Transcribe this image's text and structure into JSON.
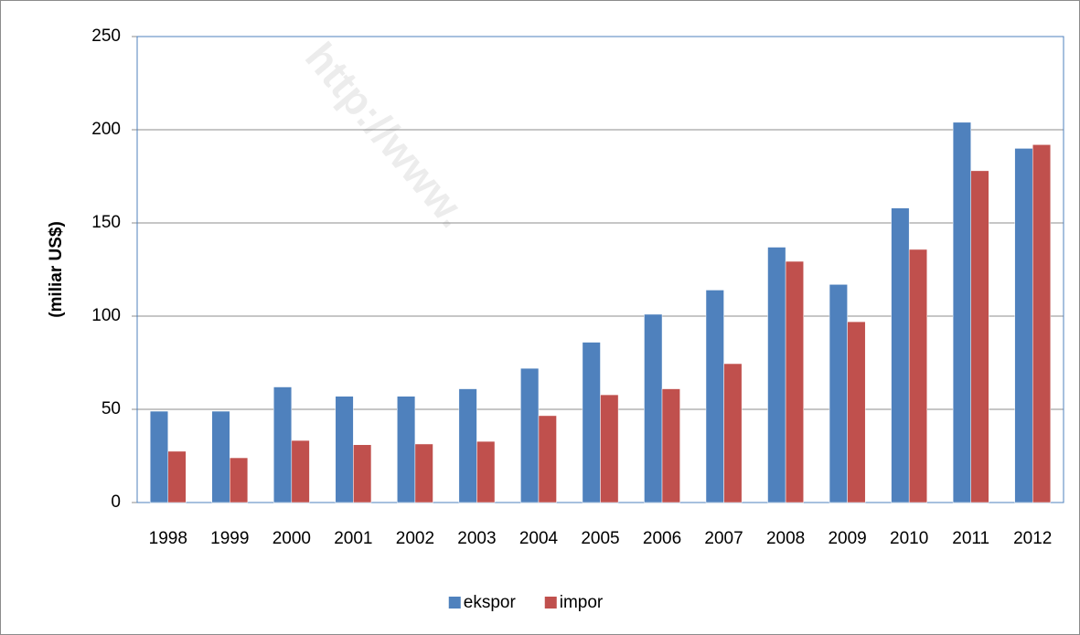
{
  "chart_data": {
    "type": "bar",
    "y_label": "(miliar US$)",
    "watermark": "http://www.",
    "categories": [
      "1998",
      "1999",
      "2000",
      "2001",
      "2002",
      "2003",
      "2004",
      "2005",
      "2006",
      "2007",
      "2008",
      "2009",
      "2010",
      "2011",
      "2012"
    ],
    "series": [
      {
        "name": "ekspor",
        "color": "#4f81bd",
        "values": [
          49,
          49,
          62,
          57,
          57,
          61,
          72,
          86,
          101,
          114,
          137,
          117,
          158,
          204,
          190
        ]
      },
      {
        "name": "impor",
        "color": "#c0504d",
        "values": [
          27.5,
          24,
          33.3,
          31,
          31.4,
          32.8,
          46.6,
          57.8,
          61,
          74.5,
          129.4,
          97,
          135.8,
          178,
          192
        ]
      }
    ],
    "ylim": [
      0,
      250
    ],
    "yticks": [
      0,
      50,
      100,
      150,
      200,
      250
    ],
    "grid": true,
    "legend": "bottom"
  }
}
